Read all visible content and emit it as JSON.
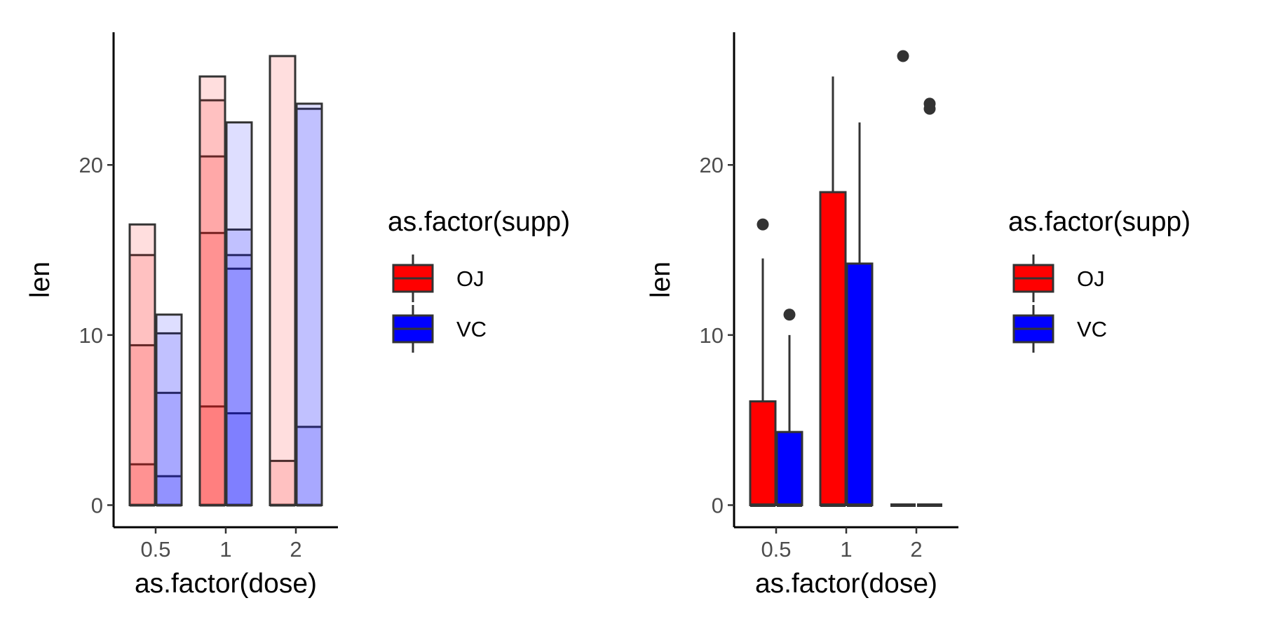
{
  "chart_data": [
    {
      "type": "bar",
      "subtype": "stacked-transparent-bars",
      "xlabel": "as.factor(dose)",
      "ylabel": "len",
      "categories": [
        "0.5",
        "1",
        "2"
      ],
      "yticks": [
        0,
        10,
        20
      ],
      "ylim": [
        -1.3,
        27.8
      ],
      "grid": false,
      "legend": {
        "title": "as.factor(supp)",
        "position": "right",
        "items": [
          {
            "label": "OJ",
            "color": "#FF0000"
          },
          {
            "label": "VC",
            "color": "#0000FF"
          }
        ]
      },
      "fill_alpha": 0.13,
      "outline_color": "#333333",
      "series": [
        {
          "name": "OJ",
          "color": "#FF0000",
          "stacks": [
            [
              0,
              2.4,
              9.4,
              14.7,
              16.5
            ],
            [
              0,
              5.8,
              16.0,
              20.5,
              23.8,
              25.2
            ],
            [
              0,
              2.6,
              26.4
            ]
          ]
        },
        {
          "name": "VC",
          "color": "#0000FF",
          "stacks": [
            [
              0,
              1.7,
              6.6,
              10.1,
              11.2
            ],
            [
              0,
              5.4,
              13.9,
              14.7,
              16.2,
              22.5
            ],
            [
              0,
              4.6,
              23.3,
              23.6
            ]
          ]
        }
      ]
    },
    {
      "type": "box",
      "xlabel": "as.factor(dose)",
      "ylabel": "len",
      "categories": [
        "0.5",
        "1",
        "2"
      ],
      "yticks": [
        0,
        10,
        20
      ],
      "ylim": [
        -1.3,
        27.8
      ],
      "grid": false,
      "legend": {
        "title": "as.factor(supp)",
        "position": "right",
        "items": [
          {
            "label": "OJ",
            "color": "#FF0000"
          },
          {
            "label": "VC",
            "color": "#0000FF"
          }
        ]
      },
      "outline_color": "#333333",
      "series": [
        {
          "name": "OJ",
          "color": "#FF0000",
          "boxes": [
            {
              "lower": 0,
              "q1": 0,
              "median": 0,
              "q3": 6.1,
              "upper": 14.5,
              "outliers": [
                16.5
              ]
            },
            {
              "lower": 0,
              "q1": 0,
              "median": 0,
              "q3": 18.4,
              "upper": 25.2,
              "outliers": []
            },
            {
              "lower": 0,
              "q1": 0,
              "median": 0,
              "q3": 0,
              "upper": 0,
              "outliers": [
                26.4
              ]
            }
          ]
        },
        {
          "name": "VC",
          "color": "#0000FF",
          "boxes": [
            {
              "lower": 0,
              "q1": 0,
              "median": 0,
              "q3": 4.3,
              "upper": 10.0,
              "outliers": [
                11.2
              ]
            },
            {
              "lower": 0,
              "q1": 0,
              "median": 0,
              "q3": 14.2,
              "upper": 22.5,
              "outliers": []
            },
            {
              "lower": 0,
              "q1": 0,
              "median": 0,
              "q3": 0,
              "upper": 0,
              "outliers": [
                23.6,
                23.3
              ]
            }
          ]
        }
      ]
    }
  ]
}
